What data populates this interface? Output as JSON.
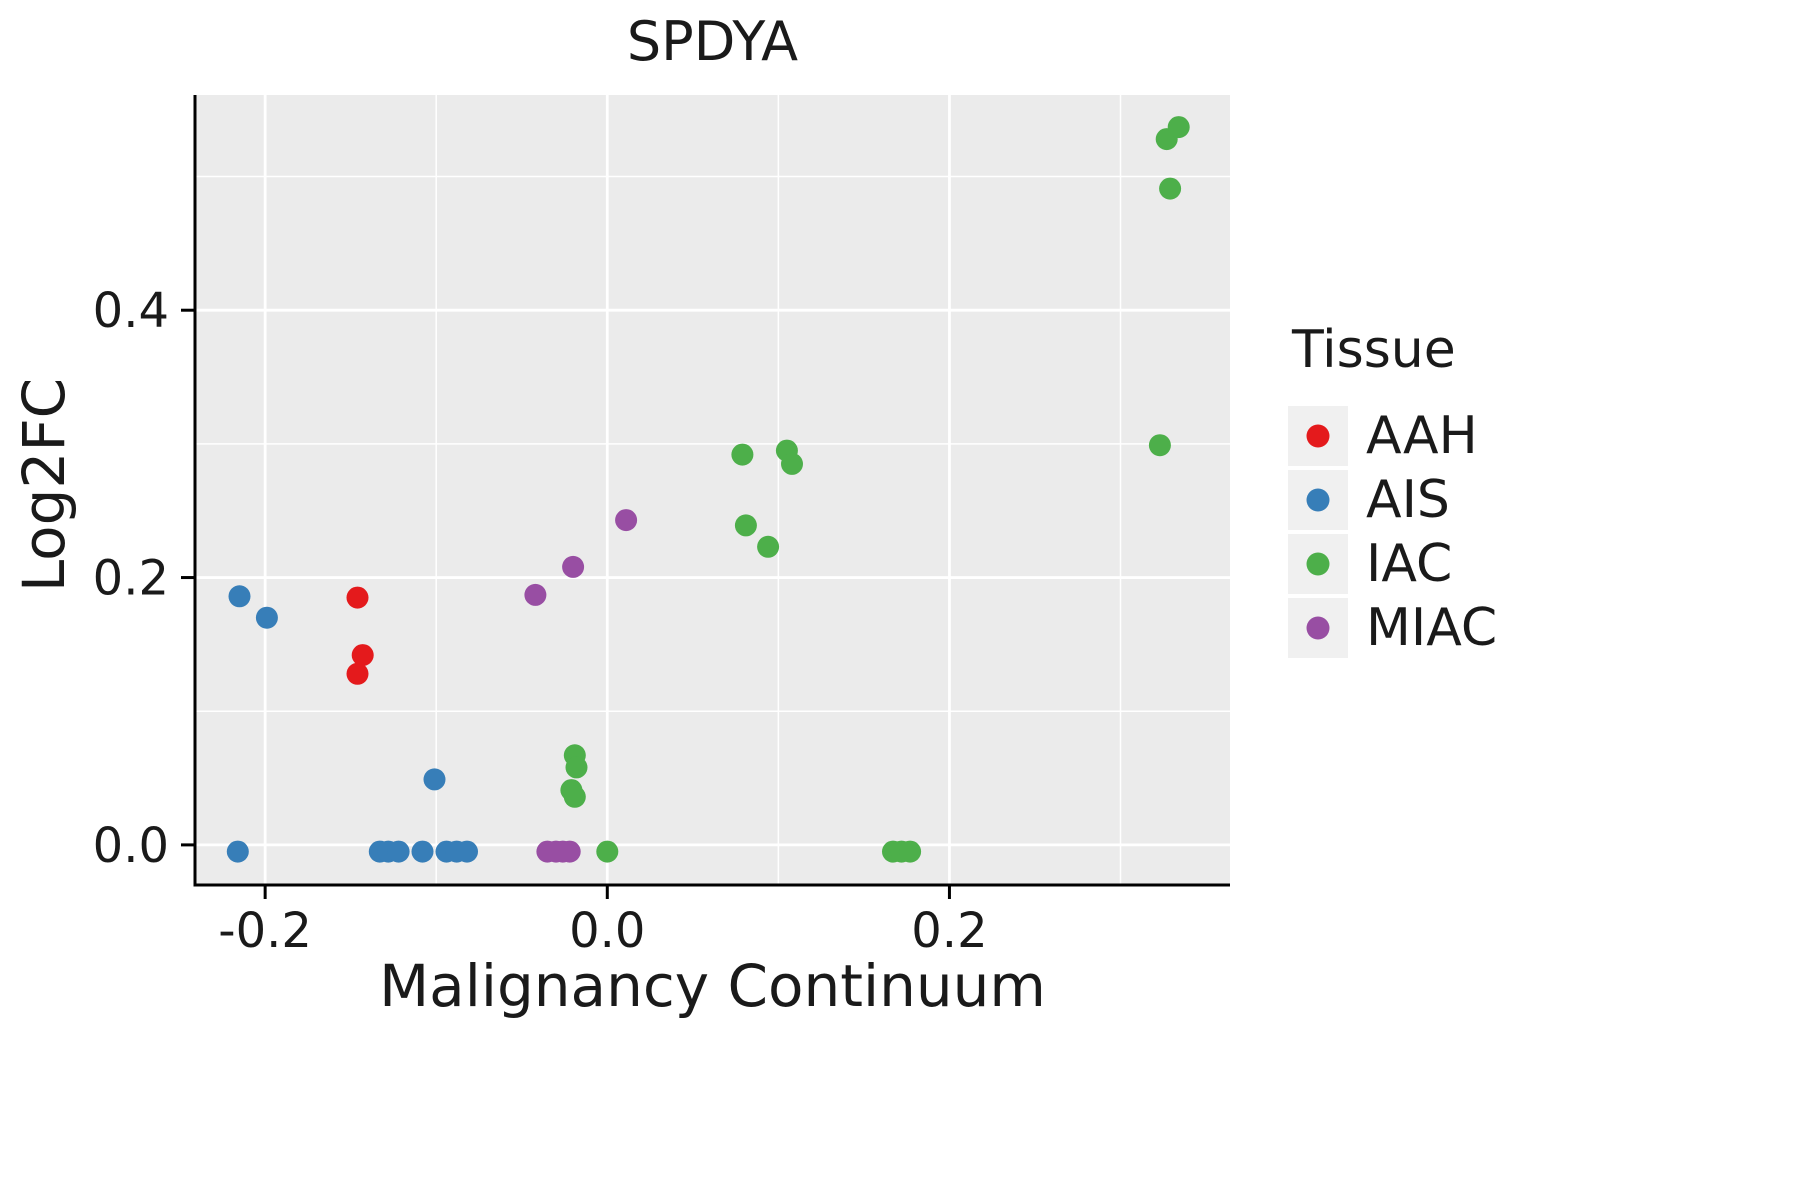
{
  "title": "SPDYA",
  "legend": {
    "title": "Tissue",
    "entries": [
      {
        "label": "AAH",
        "color": "#E41A1C"
      },
      {
        "label": "AIS",
        "color": "#377EB8"
      },
      {
        "label": "IAC",
        "color": "#4DAF4A"
      },
      {
        "label": "MIAC",
        "color": "#984EA3"
      }
    ]
  },
  "chart_data": {
    "type": "scatter",
    "title": "SPDYA",
    "xlabel": "Malignancy Continuum",
    "ylabel": "Log2FC",
    "xlim": [
      -0.241,
      0.364
    ],
    "ylim": [
      -0.03,
      0.561
    ],
    "xticks": [
      -0.2,
      0.0,
      0.2
    ],
    "xtick_labels": [
      "-0.2",
      "0.0",
      "0.2"
    ],
    "yticks": [
      0.0,
      0.2,
      0.4
    ],
    "ytick_labels": [
      "0.0",
      "0.2",
      "0.4"
    ],
    "xticks_minor": [
      -0.1,
      0.1,
      0.3
    ],
    "yticks_minor": [
      0.1,
      0.3,
      0.5
    ],
    "grid": true,
    "legend_position": "right",
    "panel_background": "#EBEBEB",
    "series": [
      {
        "name": "AAH",
        "color": "#E41A1C",
        "points": [
          {
            "x": -0.146,
            "y": 0.185
          },
          {
            "x": -0.143,
            "y": 0.142
          },
          {
            "x": -0.146,
            "y": 0.128
          }
        ]
      },
      {
        "name": "AIS",
        "color": "#377EB8",
        "points": [
          {
            "x": -0.215,
            "y": 0.186
          },
          {
            "x": -0.199,
            "y": 0.17
          },
          {
            "x": -0.101,
            "y": 0.049
          },
          {
            "x": -0.216,
            "y": -0.005
          },
          {
            "x": -0.133,
            "y": -0.005
          },
          {
            "x": -0.128,
            "y": -0.005
          },
          {
            "x": -0.122,
            "y": -0.005
          },
          {
            "x": -0.108,
            "y": -0.005
          },
          {
            "x": -0.094,
            "y": -0.005
          },
          {
            "x": -0.088,
            "y": -0.005
          },
          {
            "x": -0.082,
            "y": -0.005
          }
        ]
      },
      {
        "name": "IAC",
        "color": "#4DAF4A",
        "points": [
          {
            "x": 0.327,
            "y": 0.528
          },
          {
            "x": 0.334,
            "y": 0.537
          },
          {
            "x": 0.329,
            "y": 0.491
          },
          {
            "x": 0.323,
            "y": 0.299
          },
          {
            "x": 0.079,
            "y": 0.292
          },
          {
            "x": 0.105,
            "y": 0.295
          },
          {
            "x": 0.108,
            "y": 0.285
          },
          {
            "x": 0.081,
            "y": 0.239
          },
          {
            "x": 0.094,
            "y": 0.223
          },
          {
            "x": -0.019,
            "y": 0.067
          },
          {
            "x": -0.018,
            "y": 0.058
          },
          {
            "x": -0.021,
            "y": 0.041
          },
          {
            "x": -0.019,
            "y": 0.036
          },
          {
            "x": 0.0,
            "y": -0.005
          },
          {
            "x": 0.167,
            "y": -0.005
          },
          {
            "x": 0.172,
            "y": -0.005
          },
          {
            "x": 0.177,
            "y": -0.005
          }
        ]
      },
      {
        "name": "MIAC",
        "color": "#984EA3",
        "points": [
          {
            "x": 0.011,
            "y": 0.243
          },
          {
            "x": -0.02,
            "y": 0.208
          },
          {
            "x": -0.042,
            "y": 0.187
          },
          {
            "x": -0.035,
            "y": -0.005
          },
          {
            "x": -0.03,
            "y": -0.005
          },
          {
            "x": -0.026,
            "y": -0.005
          },
          {
            "x": -0.022,
            "y": -0.005
          }
        ]
      }
    ]
  }
}
